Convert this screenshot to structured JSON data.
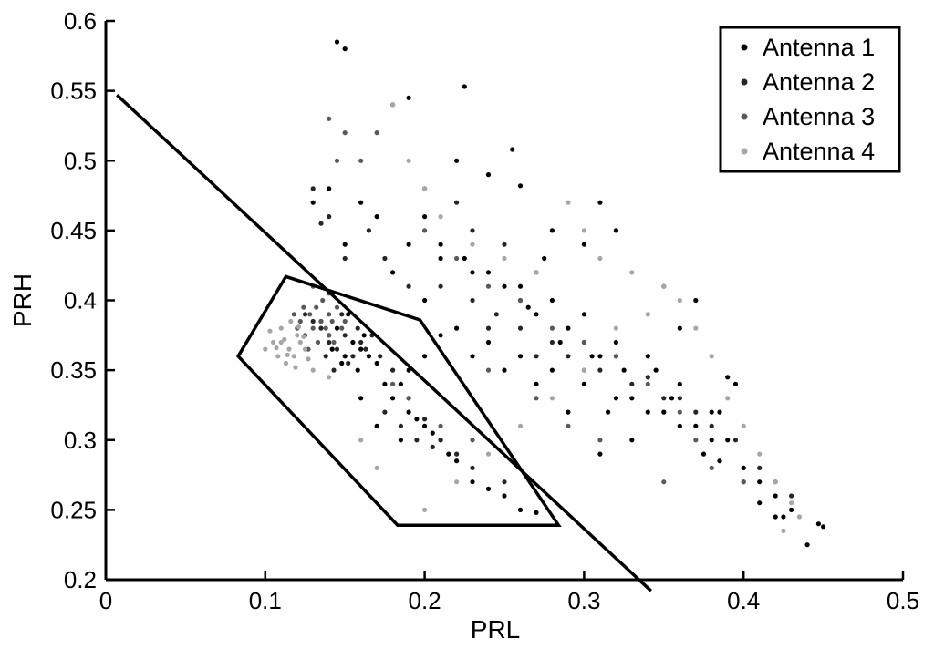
{
  "chart_data": {
    "type": "scatter",
    "title": "",
    "xlabel": "PRL",
    "ylabel": "PRH",
    "xlim": [
      0,
      0.5
    ],
    "ylim": [
      0.2,
      0.6
    ],
    "xticks": [
      "0",
      "0.1",
      "0.2",
      "0.3",
      "0.4",
      "0.5"
    ],
    "yticks": [
      "0.2",
      "0.25",
      "0.3",
      "0.35",
      "0.4",
      "0.45",
      "0.5",
      "0.55",
      "0.6"
    ],
    "grid": false,
    "legend_position": "top-right",
    "series": [
      {
        "name": "Antenna 1",
        "color": "#000000",
        "points": [
          [
            0.14,
            0.375
          ],
          [
            0.15,
            0.36
          ],
          [
            0.145,
            0.38
          ],
          [
            0.155,
            0.37
          ],
          [
            0.16,
            0.365
          ],
          [
            0.148,
            0.355
          ],
          [
            0.152,
            0.39
          ],
          [
            0.158,
            0.35
          ],
          [
            0.162,
            0.375
          ],
          [
            0.142,
            0.365
          ],
          [
            0.165,
            0.36
          ],
          [
            0.135,
            0.385
          ],
          [
            0.17,
            0.355
          ],
          [
            0.175,
            0.34
          ],
          [
            0.18,
            0.33
          ],
          [
            0.19,
            0.32
          ],
          [
            0.2,
            0.31
          ],
          [
            0.21,
            0.3
          ],
          [
            0.22,
            0.285
          ],
          [
            0.23,
            0.27
          ],
          [
            0.24,
            0.265
          ],
          [
            0.25,
            0.26
          ],
          [
            0.26,
            0.25
          ],
          [
            0.27,
            0.248
          ],
          [
            0.185,
            0.34
          ],
          [
            0.195,
            0.315
          ],
          [
            0.205,
            0.305
          ],
          [
            0.215,
            0.29
          ],
          [
            0.16,
            0.33
          ],
          [
            0.17,
            0.31
          ],
          [
            0.185,
            0.3
          ],
          [
            0.145,
            0.585
          ],
          [
            0.15,
            0.58
          ],
          [
            0.18,
            0.54
          ],
          [
            0.225,
            0.553
          ],
          [
            0.22,
            0.5
          ],
          [
            0.19,
            0.545
          ],
          [
            0.2,
            0.46
          ],
          [
            0.21,
            0.44
          ],
          [
            0.225,
            0.43
          ],
          [
            0.24,
            0.42
          ],
          [
            0.26,
            0.41
          ],
          [
            0.28,
            0.4
          ],
          [
            0.3,
            0.39
          ],
          [
            0.32,
            0.37
          ],
          [
            0.34,
            0.36
          ],
          [
            0.36,
            0.34
          ],
          [
            0.38,
            0.32
          ],
          [
            0.39,
            0.3
          ],
          [
            0.4,
            0.28
          ],
          [
            0.41,
            0.27
          ],
          [
            0.42,
            0.26
          ],
          [
            0.43,
            0.25
          ],
          [
            0.44,
            0.225
          ],
          [
            0.447,
            0.24
          ],
          [
            0.45,
            0.238
          ],
          [
            0.425,
            0.245
          ],
          [
            0.39,
            0.345
          ],
          [
            0.395,
            0.34
          ],
          [
            0.385,
            0.32
          ],
          [
            0.37,
            0.31
          ],
          [
            0.36,
            0.31
          ],
          [
            0.35,
            0.32
          ],
          [
            0.33,
            0.33
          ],
          [
            0.31,
            0.36
          ],
          [
            0.3,
            0.37
          ],
          [
            0.29,
            0.38
          ],
          [
            0.27,
            0.39
          ],
          [
            0.26,
            0.4
          ],
          [
            0.25,
            0.41
          ],
          [
            0.23,
            0.42
          ],
          [
            0.21,
            0.43
          ],
          [
            0.19,
            0.44
          ],
          [
            0.17,
            0.46
          ],
          [
            0.16,
            0.47
          ],
          [
            0.14,
            0.48
          ],
          [
            0.13,
            0.47
          ],
          [
            0.15,
            0.44
          ],
          [
            0.18,
            0.42
          ],
          [
            0.2,
            0.4
          ],
          [
            0.22,
            0.38
          ],
          [
            0.24,
            0.37
          ],
          [
            0.26,
            0.36
          ],
          [
            0.28,
            0.35
          ],
          [
            0.3,
            0.34
          ],
          [
            0.32,
            0.33
          ],
          [
            0.34,
            0.32
          ],
          [
            0.33,
            0.3
          ],
          [
            0.31,
            0.29
          ],
          [
            0.29,
            0.32
          ],
          [
            0.27,
            0.34
          ],
          [
            0.25,
            0.35
          ],
          [
            0.23,
            0.36
          ],
          [
            0.21,
            0.375
          ],
          [
            0.2,
            0.36
          ],
          [
            0.19,
            0.35
          ],
          [
            0.255,
            0.508
          ],
          [
            0.26,
            0.482
          ],
          [
            0.24,
            0.49
          ],
          [
            0.28,
            0.45
          ],
          [
            0.3,
            0.44
          ],
          [
            0.31,
            0.47
          ],
          [
            0.32,
            0.45
          ],
          [
            0.35,
            0.41
          ],
          [
            0.37,
            0.4
          ],
          [
            0.36,
            0.38
          ],
          [
            0.345,
            0.35
          ],
          [
            0.355,
            0.33
          ],
          [
            0.38,
            0.3
          ],
          [
            0.375,
            0.29
          ],
          [
            0.385,
            0.285
          ],
          [
            0.4,
            0.27
          ],
          [
            0.41,
            0.255
          ],
          [
            0.42,
            0.245
          ],
          [
            0.275,
            0.43
          ],
          [
            0.265,
            0.395
          ],
          [
            0.285,
            0.37
          ],
          [
            0.305,
            0.36
          ],
          [
            0.325,
            0.35
          ],
          [
            0.315,
            0.32
          ]
        ]
      },
      {
        "name": "Antenna 2",
        "color": "#262626",
        "points": [
          [
            0.14,
            0.37
          ],
          [
            0.145,
            0.365
          ],
          [
            0.15,
            0.375
          ],
          [
            0.135,
            0.38
          ],
          [
            0.155,
            0.36
          ],
          [
            0.16,
            0.37
          ],
          [
            0.13,
            0.385
          ],
          [
            0.125,
            0.39
          ],
          [
            0.138,
            0.36
          ],
          [
            0.148,
            0.39
          ],
          [
            0.152,
            0.355
          ],
          [
            0.158,
            0.38
          ],
          [
            0.163,
            0.365
          ],
          [
            0.143,
            0.35
          ],
          [
            0.167,
            0.375
          ],
          [
            0.172,
            0.36
          ],
          [
            0.18,
            0.35
          ],
          [
            0.19,
            0.33
          ],
          [
            0.2,
            0.315
          ],
          [
            0.21,
            0.3
          ],
          [
            0.22,
            0.29
          ],
          [
            0.23,
            0.28
          ],
          [
            0.25,
            0.27
          ],
          [
            0.14,
            0.46
          ],
          [
            0.13,
            0.48
          ],
          [
            0.135,
            0.455
          ],
          [
            0.15,
            0.43
          ],
          [
            0.165,
            0.45
          ],
          [
            0.175,
            0.43
          ],
          [
            0.19,
            0.41
          ],
          [
            0.21,
            0.41
          ],
          [
            0.23,
            0.4
          ],
          [
            0.245,
            0.39
          ],
          [
            0.26,
            0.38
          ],
          [
            0.28,
            0.37
          ],
          [
            0.29,
            0.36
          ],
          [
            0.31,
            0.35
          ],
          [
            0.33,
            0.34
          ],
          [
            0.35,
            0.33
          ],
          [
            0.37,
            0.32
          ],
          [
            0.38,
            0.31
          ],
          [
            0.395,
            0.3
          ],
          [
            0.41,
            0.28
          ],
          [
            0.42,
            0.27
          ],
          [
            0.43,
            0.26
          ],
          [
            0.27,
            0.42
          ],
          [
            0.25,
            0.44
          ],
          [
            0.23,
            0.45
          ],
          [
            0.22,
            0.47
          ],
          [
            0.2,
            0.48
          ],
          [
            0.24,
            0.38
          ],
          [
            0.27,
            0.36
          ],
          [
            0.3,
            0.35
          ],
          [
            0.32,
            0.36
          ],
          [
            0.34,
            0.345
          ],
          [
            0.36,
            0.33
          ],
          [
            0.175,
            0.32
          ],
          [
            0.185,
            0.31
          ],
          [
            0.195,
            0.3
          ],
          [
            0.205,
            0.295
          ]
        ]
      },
      {
        "name": "Antenna 3",
        "color": "#595959",
        "points": [
          [
            0.13,
            0.38
          ],
          [
            0.135,
            0.385
          ],
          [
            0.14,
            0.39
          ],
          [
            0.125,
            0.375
          ],
          [
            0.128,
            0.39
          ],
          [
            0.132,
            0.395
          ],
          [
            0.138,
            0.38
          ],
          [
            0.142,
            0.385
          ],
          [
            0.145,
            0.395
          ],
          [
            0.12,
            0.38
          ],
          [
            0.122,
            0.385
          ],
          [
            0.133,
            0.37
          ],
          [
            0.127,
            0.365
          ],
          [
            0.14,
            0.375
          ],
          [
            0.148,
            0.38
          ],
          [
            0.118,
            0.39
          ],
          [
            0.136,
            0.4
          ],
          [
            0.143,
            0.37
          ],
          [
            0.15,
            0.385
          ],
          [
            0.124,
            0.395
          ],
          [
            0.13,
            0.41
          ],
          [
            0.14,
            0.405
          ],
          [
            0.145,
            0.5
          ],
          [
            0.14,
            0.53
          ],
          [
            0.15,
            0.52
          ],
          [
            0.16,
            0.5
          ],
          [
            0.17,
            0.52
          ],
          [
            0.2,
            0.45
          ],
          [
            0.22,
            0.43
          ],
          [
            0.24,
            0.41
          ],
          [
            0.26,
            0.4
          ],
          [
            0.28,
            0.38
          ],
          [
            0.3,
            0.37
          ],
          [
            0.32,
            0.36
          ],
          [
            0.34,
            0.34
          ],
          [
            0.36,
            0.32
          ],
          [
            0.37,
            0.3
          ],
          [
            0.35,
            0.27
          ],
          [
            0.38,
            0.28
          ],
          [
            0.4,
            0.27
          ],
          [
            0.21,
            0.31
          ],
          [
            0.23,
            0.3
          ],
          [
            0.19,
            0.33
          ],
          [
            0.18,
            0.34
          ],
          [
            0.24,
            0.35
          ],
          [
            0.27,
            0.33
          ],
          [
            0.29,
            0.31
          ],
          [
            0.31,
            0.3
          ]
        ]
      },
      {
        "name": "Antenna 4",
        "color": "#a6a6a6",
        "points": [
          [
            0.11,
            0.37
          ],
          [
            0.115,
            0.365
          ],
          [
            0.12,
            0.375
          ],
          [
            0.105,
            0.37
          ],
          [
            0.11,
            0.38
          ],
          [
            0.118,
            0.36
          ],
          [
            0.122,
            0.37
          ],
          [
            0.108,
            0.36
          ],
          [
            0.113,
            0.355
          ],
          [
            0.125,
            0.365
          ],
          [
            0.116,
            0.385
          ],
          [
            0.103,
            0.378
          ],
          [
            0.119,
            0.352
          ],
          [
            0.127,
            0.358
          ],
          [
            0.112,
            0.372
          ],
          [
            0.107,
            0.366
          ],
          [
            0.121,
            0.381
          ],
          [
            0.114,
            0.361
          ],
          [
            0.1,
            0.365
          ],
          [
            0.124,
            0.374
          ],
          [
            0.13,
            0.35
          ],
          [
            0.14,
            0.345
          ],
          [
            0.18,
            0.54
          ],
          [
            0.19,
            0.5
          ],
          [
            0.2,
            0.48
          ],
          [
            0.21,
            0.46
          ],
          [
            0.23,
            0.44
          ],
          [
            0.25,
            0.43
          ],
          [
            0.27,
            0.42
          ],
          [
            0.29,
            0.47
          ],
          [
            0.3,
            0.45
          ],
          [
            0.31,
            0.43
          ],
          [
            0.33,
            0.42
          ],
          [
            0.35,
            0.41
          ],
          [
            0.36,
            0.4
          ],
          [
            0.37,
            0.38
          ],
          [
            0.38,
            0.36
          ],
          [
            0.39,
            0.33
          ],
          [
            0.4,
            0.31
          ],
          [
            0.41,
            0.29
          ],
          [
            0.42,
            0.27
          ],
          [
            0.43,
            0.255
          ],
          [
            0.425,
            0.235
          ],
          [
            0.435,
            0.245
          ],
          [
            0.16,
            0.3
          ],
          [
            0.17,
            0.28
          ],
          [
            0.2,
            0.25
          ],
          [
            0.22,
            0.27
          ],
          [
            0.24,
            0.29
          ],
          [
            0.26,
            0.31
          ],
          [
            0.28,
            0.33
          ],
          [
            0.3,
            0.35
          ],
          [
            0.32,
            0.38
          ],
          [
            0.34,
            0.39
          ]
        ]
      }
    ],
    "overlays": [
      {
        "name": "decision-line",
        "kind": "line",
        "points": [
          [
            0.007,
            0.547
          ],
          [
            0.342,
            0.192
          ]
        ]
      },
      {
        "name": "boundary-polygon",
        "kind": "polygon",
        "points": [
          [
            0.083,
            0.36
          ],
          [
            0.113,
            0.417
          ],
          [
            0.197,
            0.386
          ],
          [
            0.284,
            0.239
          ],
          [
            0.183,
            0.239
          ]
        ]
      }
    ]
  }
}
